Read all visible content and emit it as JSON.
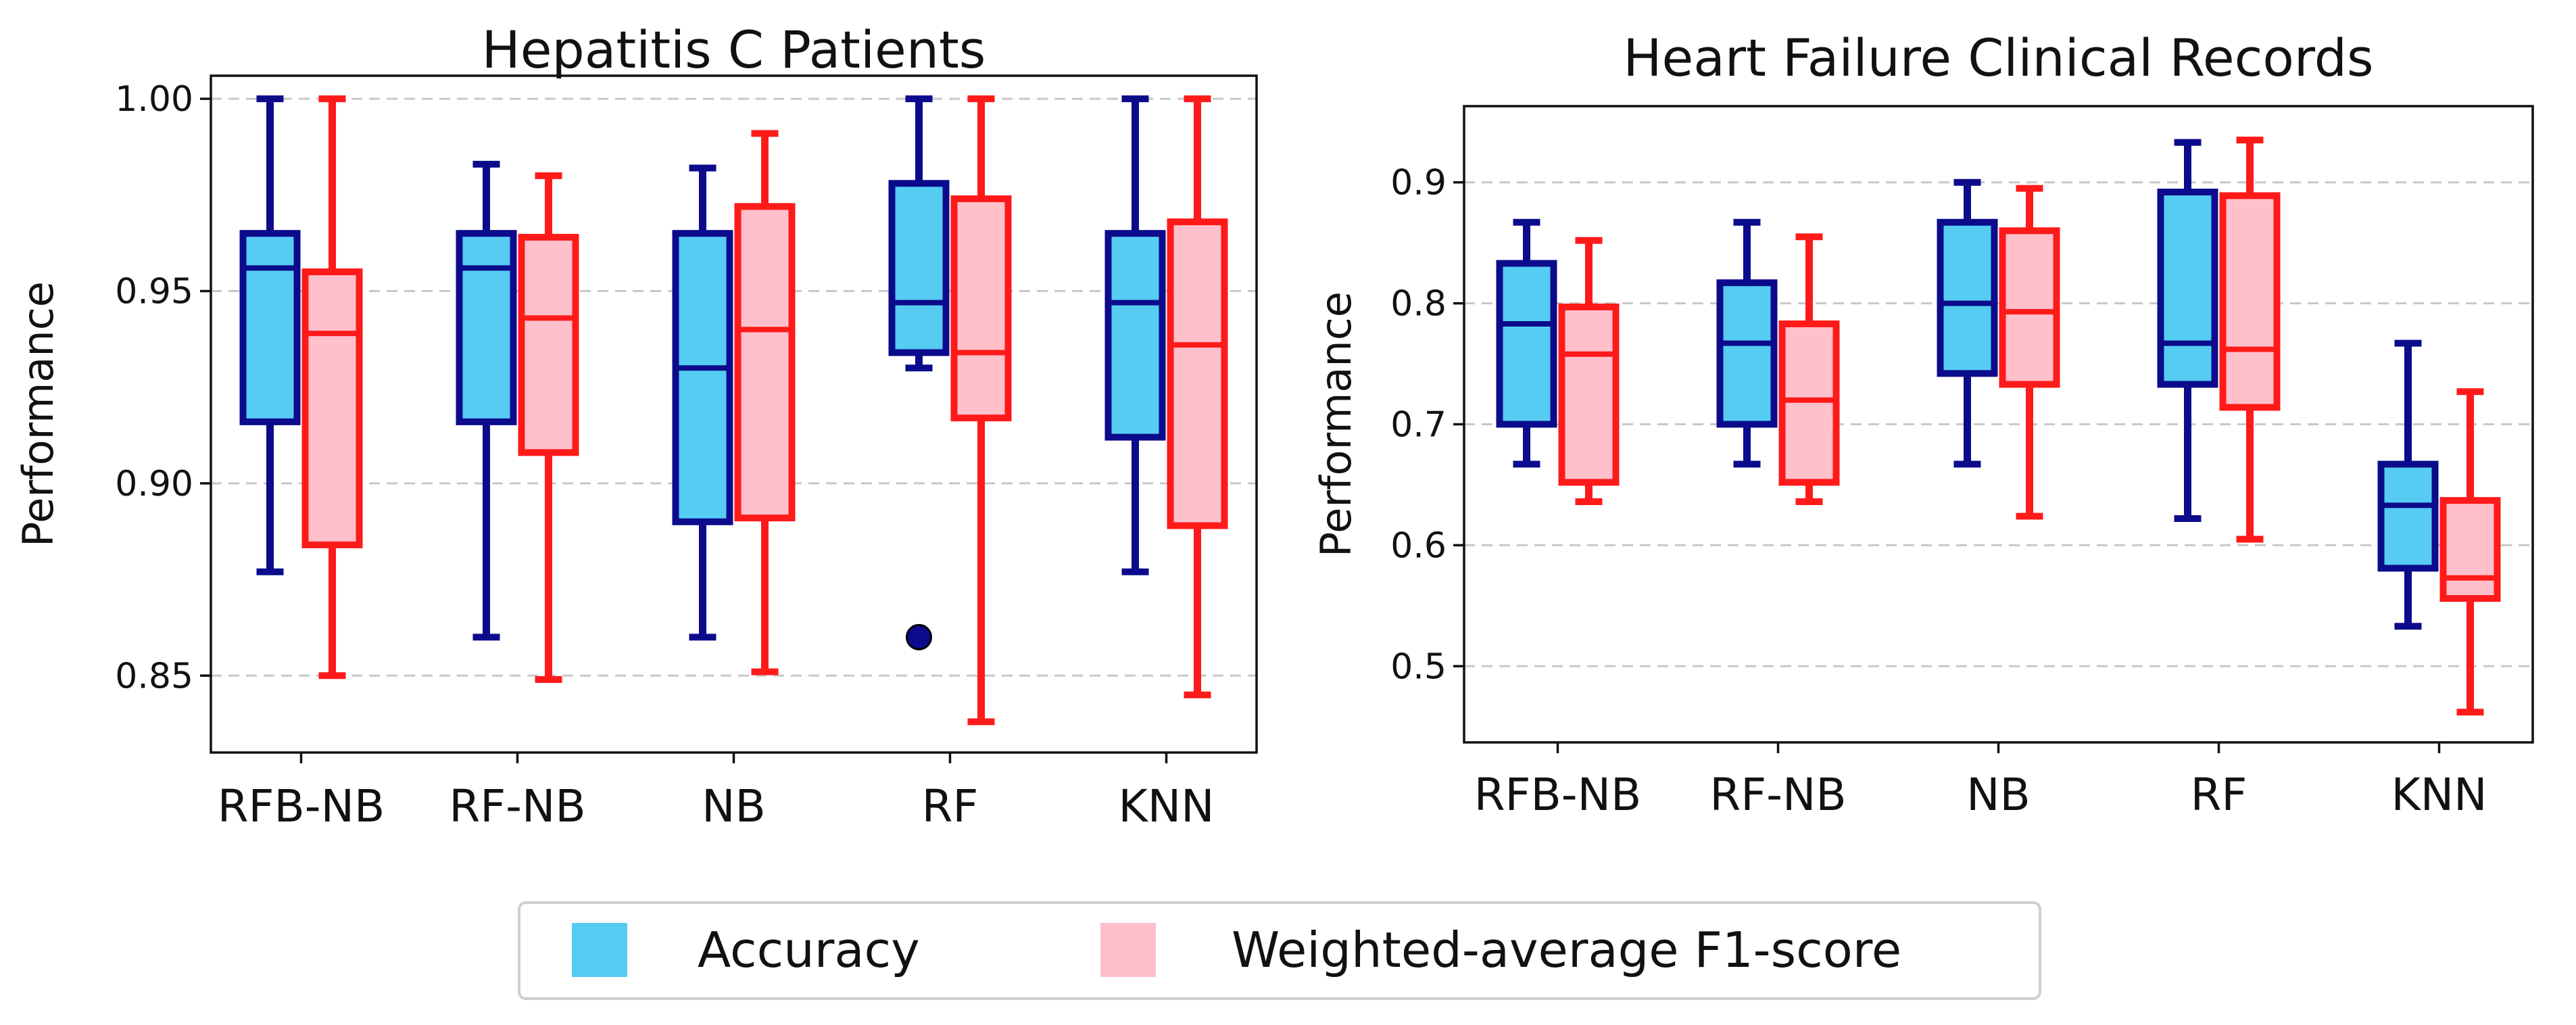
{
  "legend": {
    "items": [
      {
        "label": "Accuracy",
        "color": "#56CCF2"
      },
      {
        "label": "Weighted-average F1-score",
        "color": "#FFC0CB"
      }
    ]
  },
  "styles": {
    "acc_fill": "#56CCF2",
    "acc_edge": "#0B0B8C",
    "f1_fill": "#FFC0CB",
    "f1_edge": "#FF1A1A",
    "grid": "#C8C8C8"
  },
  "chart_data": [
    {
      "type": "boxplot",
      "title": "Hepatitis C Patients",
      "ylabel": "Performance",
      "xlabel": "",
      "ylim": [
        0.83,
        1.006
      ],
      "yticks": [
        0.85,
        0.9,
        0.95,
        1.0
      ],
      "ytick_labels": [
        "0.85",
        "0.90",
        "0.95",
        "1.00"
      ],
      "grid": "horizontal dashed",
      "categories": [
        "RFB-NB",
        "RF-NB",
        "NB",
        "RF",
        "KNN"
      ],
      "series": [
        {
          "name": "Accuracy",
          "boxes": [
            {
              "whislo": 0.877,
              "q1": 0.916,
              "med": 0.956,
              "q3": 0.965,
              "whishi": 1.0,
              "fliers": []
            },
            {
              "whislo": 0.86,
              "q1": 0.916,
              "med": 0.956,
              "q3": 0.965,
              "whishi": 0.983,
              "fliers": []
            },
            {
              "whislo": 0.86,
              "q1": 0.89,
              "med": 0.93,
              "q3": 0.965,
              "whishi": 0.982,
              "fliers": []
            },
            {
              "whislo": 0.93,
              "q1": 0.934,
              "med": 0.947,
              "q3": 0.978,
              "whishi": 1.0,
              "fliers": [
                0.86
              ]
            },
            {
              "whislo": 0.877,
              "q1": 0.912,
              "med": 0.947,
              "q3": 0.965,
              "whishi": 1.0,
              "fliers": []
            }
          ]
        },
        {
          "name": "Weighted-average F1-score",
          "boxes": [
            {
              "whislo": 0.85,
              "q1": 0.884,
              "med": 0.939,
              "q3": 0.955,
              "whishi": 1.0,
              "fliers": []
            },
            {
              "whislo": 0.849,
              "q1": 0.908,
              "med": 0.943,
              "q3": 0.964,
              "whishi": 0.98,
              "fliers": []
            },
            {
              "whislo": 0.851,
              "q1": 0.891,
              "med": 0.94,
              "q3": 0.972,
              "whishi": 0.991,
              "fliers": []
            },
            {
              "whislo": 0.838,
              "q1": 0.917,
              "med": 0.934,
              "q3": 0.974,
              "whishi": 1.0,
              "fliers": []
            },
            {
              "whislo": 0.845,
              "q1": 0.889,
              "med": 0.936,
              "q3": 0.968,
              "whishi": 1.0,
              "fliers": []
            }
          ]
        }
      ]
    },
    {
      "type": "boxplot",
      "title": "Heart Failure Clinical Records",
      "ylabel": "Performance",
      "xlabel": "",
      "ylim": [
        0.437,
        0.963
      ],
      "yticks": [
        0.5,
        0.6,
        0.7,
        0.8,
        0.9
      ],
      "ytick_labels": [
        "0.5",
        "0.6",
        "0.7",
        "0.8",
        "0.9"
      ],
      "grid": "horizontal dashed",
      "categories": [
        "RFB-NB",
        "RF-NB",
        "NB",
        "RF",
        "KNN"
      ],
      "series": [
        {
          "name": "Accuracy",
          "boxes": [
            {
              "whislo": 0.667,
              "q1": 0.7,
              "med": 0.783,
              "q3": 0.833,
              "whishi": 0.867,
              "fliers": []
            },
            {
              "whislo": 0.667,
              "q1": 0.7,
              "med": 0.767,
              "q3": 0.817,
              "whishi": 0.867,
              "fliers": []
            },
            {
              "whislo": 0.667,
              "q1": 0.742,
              "med": 0.8,
              "q3": 0.867,
              "whishi": 0.9,
              "fliers": []
            },
            {
              "whislo": 0.622,
              "q1": 0.733,
              "med": 0.767,
              "q3": 0.892,
              "whishi": 0.933,
              "fliers": []
            },
            {
              "whislo": 0.533,
              "q1": 0.581,
              "med": 0.633,
              "q3": 0.667,
              "whishi": 0.767,
              "fliers": []
            }
          ]
        },
        {
          "name": "Weighted-average F1-score",
          "boxes": [
            {
              "whislo": 0.636,
              "q1": 0.652,
              "med": 0.758,
              "q3": 0.797,
              "whishi": 0.852,
              "fliers": []
            },
            {
              "whislo": 0.636,
              "q1": 0.652,
              "med": 0.72,
              "q3": 0.783,
              "whishi": 0.855,
              "fliers": []
            },
            {
              "whislo": 0.624,
              "q1": 0.733,
              "med": 0.793,
              "q3": 0.86,
              "whishi": 0.895,
              "fliers": []
            },
            {
              "whislo": 0.605,
              "q1": 0.714,
              "med": 0.762,
              "q3": 0.889,
              "whishi": 0.935,
              "fliers": []
            },
            {
              "whislo": 0.462,
              "q1": 0.556,
              "med": 0.573,
              "q3": 0.637,
              "whishi": 0.727,
              "fliers": []
            }
          ]
        }
      ]
    }
  ]
}
